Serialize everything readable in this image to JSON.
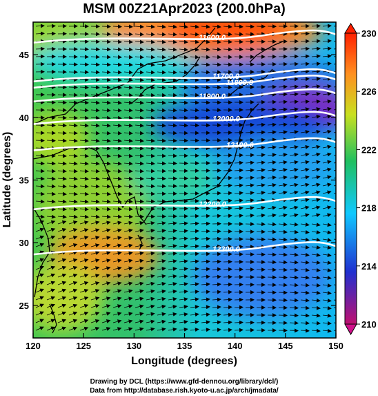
{
  "title": "MSM 00Z21Apr2023 (200.0hPa)",
  "x_axis": {
    "label": "Longitude (degrees)",
    "ticks": [
      "120",
      "125",
      "130",
      "135",
      "140",
      "145",
      "150"
    ],
    "range": [
      120,
      150
    ]
  },
  "y_axis": {
    "label": "Latitude  (degrees)",
    "ticks": [
      "25",
      "30",
      "35",
      "40",
      "45"
    ],
    "range": [
      22.4,
      47.6
    ]
  },
  "colorbar": {
    "labels": [
      "230",
      "226",
      "222",
      "218",
      "214",
      "210"
    ],
    "range": [
      210,
      230
    ],
    "colors": [
      "#c01070",
      "#2030d0",
      "#10c8ff",
      "#20c060",
      "#c8e020",
      "#ff9020",
      "#ff2000"
    ]
  },
  "contours": [
    {
      "label": "11600.0",
      "lat": 46.4
    },
    {
      "label": "11700.0",
      "lat": 43.3
    },
    {
      "label": "11800.0",
      "lat": 42.8
    },
    {
      "label": "11900.0",
      "lat": 41.7
    },
    {
      "label": "12000.0",
      "lat": 39.9
    },
    {
      "label": "12100.0",
      "lat": 37.8
    },
    {
      "label": "12200.0",
      "lat": 33.1
    },
    {
      "label": "12300.0",
      "lat": 29.5
    }
  ],
  "credits": {
    "line1": "Drawing by DCL (https://www.gfd-dennou.org/library/dcl/)",
    "line2": "Data from http://database.rish.kyoto-u.ac.jp/arch/jmadata/"
  }
}
